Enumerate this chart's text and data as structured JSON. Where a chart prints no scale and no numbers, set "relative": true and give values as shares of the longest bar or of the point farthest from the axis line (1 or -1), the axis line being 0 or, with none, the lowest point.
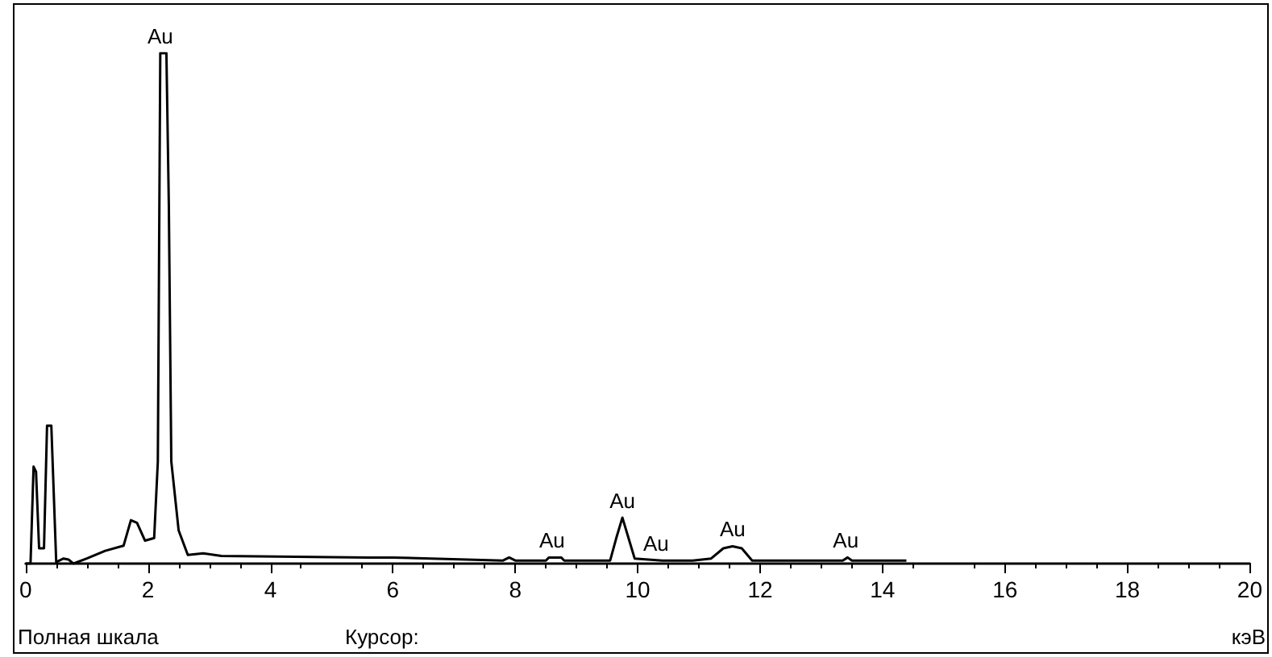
{
  "chart_data": {
    "type": "line",
    "relative": true,
    "xlabel": "кэВ",
    "xlim": [
      0,
      20
    ],
    "xticks": [
      0,
      2,
      4,
      6,
      8,
      10,
      12,
      14,
      16,
      18,
      20
    ],
    "marker": "none",
    "grid": false,
    "series": [
      {
        "color": "#000000",
        "x": [
          0,
          0.08,
          0.13,
          0.17,
          0.22,
          0.3,
          0.35,
          0.42,
          0.5,
          0.62,
          0.7,
          0.78,
          1.0,
          1.3,
          1.6,
          1.72,
          1.82,
          1.95,
          2.1,
          2.16,
          2.2,
          2.3,
          2.34,
          2.38,
          2.5,
          2.65,
          2.9,
          3.2,
          5.6,
          6.0,
          7.8,
          7.9,
          8.0,
          8.5,
          8.55,
          8.75,
          8.8,
          9.55,
          9.65,
          9.75,
          9.85,
          9.95,
          10.4,
          10.9,
          11.2,
          11.4,
          11.55,
          11.7,
          11.87,
          13.35,
          13.43,
          13.5,
          14.39
        ],
        "values": [
          0,
          0,
          0.19,
          0.18,
          0.03,
          0.03,
          0.27,
          0.27,
          0.003,
          0.01,
          0.008,
          0,
          0.01,
          0.025,
          0.035,
          0.085,
          0.08,
          0.045,
          0.05,
          0.2,
          1,
          1,
          0.7,
          0.2,
          0.065,
          0.017,
          0.02,
          0.015,
          0.012,
          0.012,
          0.006,
          0.012,
          0.006,
          0.006,
          0.012,
          0.012,
          0.006,
          0.006,
          0.05,
          0.09,
          0.05,
          0.01,
          0.006,
          0.006,
          0.01,
          0.03,
          0.034,
          0.03,
          0.006,
          0.006,
          0.012,
          0.006,
          0.006
        ]
      }
    ],
    "annotations": [
      {
        "text": "Au",
        "x": 2.2,
        "y": 1
      },
      {
        "text": "Au",
        "x": 8.6,
        "y": 0.012
      },
      {
        "text": "Au",
        "x": 9.75,
        "y": 0.09
      },
      {
        "text": "Au",
        "x": 10.3,
        "y": 0.006
      },
      {
        "text": "Au",
        "x": 11.55,
        "y": 0.034
      },
      {
        "text": "Au",
        "x": 13.4,
        "y": 0.012
      },
      "Полная шкала",
      "Курсор:"
    ]
  }
}
